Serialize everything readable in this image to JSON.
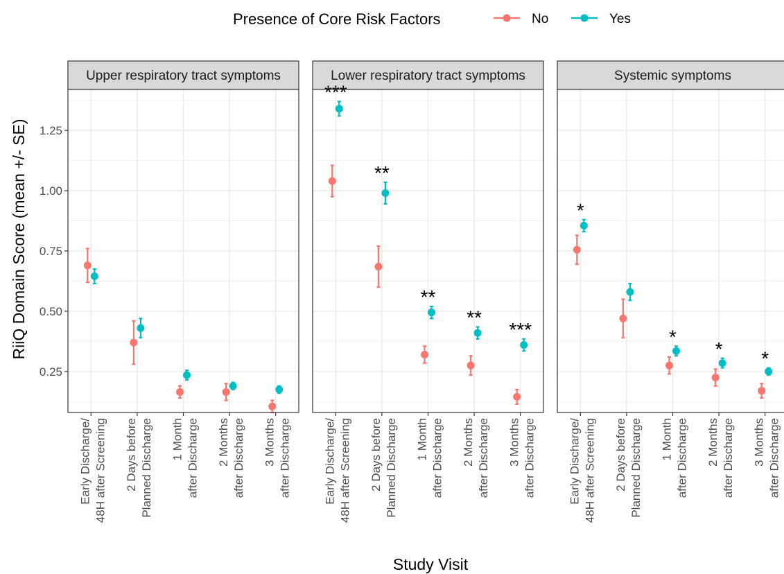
{
  "chart_data": {
    "type": "scatter",
    "legend": {
      "title": "Presence of Core Risk Factors",
      "position": "top",
      "entries": [
        {
          "name": "No",
          "color": "#F8766D"
        },
        {
          "name": "Yes",
          "color": "#00BFC4"
        }
      ]
    },
    "xlabel": "Study Visit",
    "ylabel": "RiiQ Domain Score (mean +/- SE)",
    "ylim": [
      0.08,
      1.42
    ],
    "yticks": [
      0.25,
      0.5,
      0.75,
      1.0,
      1.25
    ],
    "ytick_labels": [
      "0.25",
      "0.50",
      "0.75",
      "1.00",
      "1.25"
    ],
    "categories": [
      [
        "Early Discharge/",
        "48H after Screening"
      ],
      [
        "2 Days before",
        "Planned Discharge"
      ],
      [
        "1 Month",
        "after Discharge"
      ],
      [
        "2 Months",
        "after Discharge"
      ],
      [
        "3 Months",
        "after Discharge"
      ]
    ],
    "grid": true,
    "panels": [
      {
        "title": "Upper respiratory tract symptoms",
        "series": [
          {
            "name": "No",
            "values": [
              0.69,
              0.37,
              0.165,
              0.165,
              0.105
            ],
            "se": [
              0.07,
              0.09,
              0.025,
              0.035,
              0.025
            ]
          },
          {
            "name": "Yes",
            "values": [
              0.645,
              0.43,
              0.235,
              0.19,
              0.175
            ],
            "se": [
              0.03,
              0.04,
              0.02,
              0.015,
              0.015
            ]
          }
        ],
        "significance": [
          "",
          "",
          "",
          "",
          ""
        ]
      },
      {
        "title": "Lower respiratory tract symptoms",
        "series": [
          {
            "name": "No",
            "values": [
              1.04,
              0.685,
              0.32,
              0.275,
              0.145
            ],
            "se": [
              0.065,
              0.085,
              0.035,
              0.04,
              0.03
            ]
          },
          {
            "name": "Yes",
            "values": [
              1.34,
              0.99,
              0.495,
              0.41,
              0.36
            ],
            "se": [
              0.03,
              0.045,
              0.025,
              0.025,
              0.025
            ]
          }
        ],
        "significance": [
          "***",
          "**",
          "**",
          "**",
          "***"
        ]
      },
      {
        "title": "Systemic symptoms",
        "series": [
          {
            "name": "No",
            "values": [
              0.755,
              0.47,
              0.275,
              0.225,
              0.17
            ],
            "se": [
              0.06,
              0.08,
              0.035,
              0.035,
              0.03
            ]
          },
          {
            "name": "Yes",
            "values": [
              0.855,
              0.58,
              0.335,
              0.285,
              0.25
            ],
            "se": [
              0.025,
              0.035,
              0.02,
              0.02,
              0.015
            ]
          }
        ],
        "significance": [
          "*",
          "",
          "*",
          "*",
          "*"
        ]
      }
    ]
  }
}
